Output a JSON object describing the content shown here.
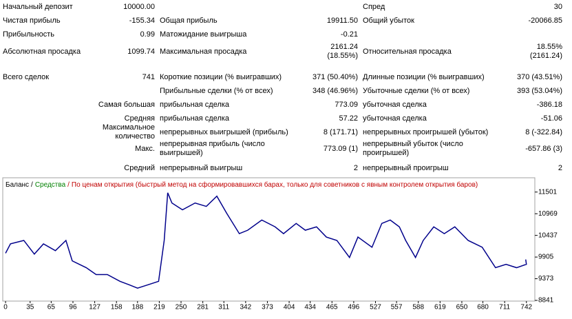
{
  "table": {
    "rows": [
      [
        "Начальный депозит",
        "10000.00",
        null,
        null,
        "Спред",
        "30"
      ],
      [
        "Чистая прибыль",
        "-155.34",
        "Общая прибыль",
        "19911.50",
        "Общий убыток",
        "-20066.85"
      ],
      [
        "Прибыльность",
        "0.99",
        "Матожидание выигрыша",
        "-0.21",
        null,
        null
      ],
      [
        "Абсолютная просадка",
        "1099.74",
        "Максимальная просадка",
        "2161.24\n(18.55%)",
        "Относительная просадка",
        "18.55%\n(2161.24)"
      ],
      [
        "Всего сделок",
        "741",
        "Короткие позиции (% выигравших)",
        "371 (50.40%)",
        "Длинные позиции (% выигравших)",
        "370 (43.51%)"
      ],
      [
        null,
        null,
        "Прибыльные сделки (% от всех)",
        "348 (46.96%)",
        "Убыточные сделки (% от всех)",
        "393 (53.04%)"
      ],
      [
        null,
        "Самая большая",
        "прибыльная сделка",
        "773.09",
        "убыточная сделка",
        "-386.18"
      ],
      [
        null,
        "Средняя",
        "прибыльная сделка",
        "57.22",
        "убыточная сделка",
        "-51.06"
      ],
      [
        null,
        "Максимальное количество",
        "непрерывных выигрышей (прибыль)",
        "8 (171.71)",
        "непрерывных проигрышей (убыток)",
        "8 (-322.84)"
      ],
      [
        null,
        "Макс.",
        "непрерывная прибыль (число\nвыигрышей)",
        "773.09 (1)",
        "непрерывный убыток (число\nпроигрышей)",
        "-657.86 (3)"
      ],
      [
        null,
        "Средний",
        "непрерывный выигрыш",
        "2",
        "непрерывный проигрыш",
        "2"
      ]
    ]
  },
  "chart_data": {
    "type": "line",
    "separator": "/",
    "note": {
      "text": "По ценам открытия (быстрый метод на сформировавшихся барах, только для советников с явным контролем открытия баров)",
      "color": "#c00000"
    },
    "series": [
      {
        "name": "Баланс",
        "color": "#00008b",
        "x": [
          0,
          7,
          26,
          41,
          54,
          71,
          86,
          95,
          115,
          129,
          145,
          163,
          176,
          188,
          203,
          218,
          226,
          231,
          237,
          252,
          270,
          286,
          301,
          315,
          333,
          345,
          365,
          384,
          396,
          414,
          427,
          443,
          457,
          472,
          490,
          502,
          522,
          536,
          548,
          561,
          570,
          584,
          595,
          610,
          625,
          640,
          659,
          679,
          698,
          713,
          728,
          742,
          741
        ],
        "values": [
          10000,
          10229,
          10313,
          9978,
          10229,
          10062,
          10313,
          9811,
          9644,
          9476,
          9476,
          9309,
          9225,
          9142,
          9225,
          9309,
          10313,
          11483,
          11232,
          11065,
          11232,
          11149,
          11400,
          10981,
          10480,
          10564,
          10814,
          10647,
          10480,
          10731,
          10564,
          10647,
          10396,
          10313,
          9895,
          10396,
          10146,
          10731,
          10814,
          10647,
          10313,
          9895,
          10313,
          10647,
          10480,
          10647,
          10313,
          10146,
          9644,
          9727,
          9644,
          9727,
          9845
        ]
      },
      {
        "name": "Средства",
        "color": "#008000"
      }
    ],
    "xlim": [
      -4,
      754
    ],
    "ylim": [
      8824,
      11852
    ],
    "xticks": [
      0,
      35,
      65,
      96,
      127,
      158,
      188,
      219,
      250,
      281,
      311,
      342,
      373,
      404,
      434,
      465,
      496,
      527,
      557,
      588,
      619,
      650,
      680,
      711,
      742
    ],
    "yticks": [
      8841,
      9373,
      9905,
      10437,
      10969,
      11501
    ]
  }
}
